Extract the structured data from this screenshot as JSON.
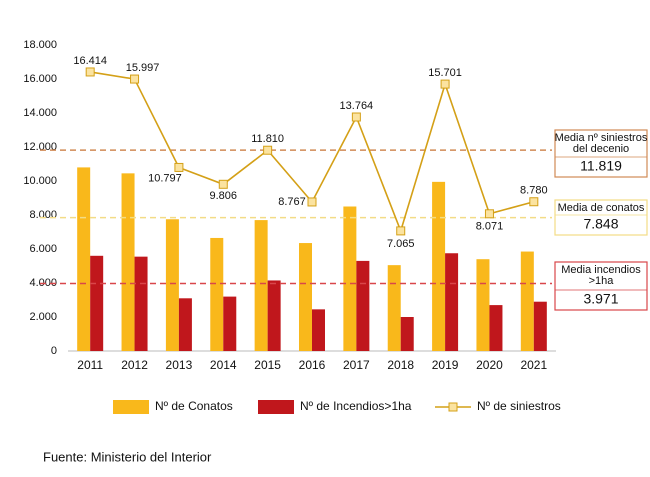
{
  "chart_data": {
    "type": "bar-line",
    "categories": [
      "2011",
      "2012",
      "2013",
      "2014",
      "2015",
      "2016",
      "2017",
      "2018",
      "2019",
      "2020",
      "2021"
    ],
    "series": [
      {
        "name": "Nº de Conatos",
        "type": "bar",
        "color": "#f9b81b",
        "values": [
          10800,
          10450,
          7750,
          6650,
          7700,
          6350,
          8500,
          5050,
          9950,
          5400,
          5850
        ]
      },
      {
        "name": "Nº de Incendios>1ha",
        "type": "bar",
        "color": "#c0171c",
        "values": [
          5600,
          5550,
          3100,
          3200,
          4150,
          2450,
          5300,
          2000,
          5750,
          2700,
          2900
        ]
      },
      {
        "name": "Nº de siniestros",
        "type": "line",
        "color": "#d4a017",
        "marker_fill": "#fbe3a0",
        "values": [
          16414,
          15997,
          10797,
          9806,
          11810,
          8767,
          13764,
          7065,
          15701,
          8071,
          8780
        ],
        "value_labels": [
          "16.414",
          "15.997",
          "10.797",
          "9.806",
          "11.810",
          "8.767",
          "13.764",
          "7.065",
          "15.701",
          "8.071",
          "8.780"
        ]
      }
    ],
    "ylim": [
      0,
      18000
    ],
    "yticks": [
      0,
      {
        "value": 2000,
        "label": "2.000"
      },
      {
        "value": 4000,
        "label": "4.000"
      },
      {
        "value": 6000,
        "label": "6.000"
      },
      {
        "value": 8000,
        "label": "8.000"
      },
      {
        "value": 10000,
        "label": "10.000"
      },
      {
        "value": 12000,
        "label": "12.000"
      },
      {
        "value": 14000,
        "label": "14.000"
      },
      {
        "value": 16000,
        "label": "16.000"
      },
      {
        "value": 18000,
        "label": "18.000"
      }
    ],
    "reference_lines": [
      {
        "label": [
          "Media nº siniestros",
          "del decenio"
        ],
        "value": 11819,
        "value_label": "11.819",
        "color": "#d08a55"
      },
      {
        "label": [
          "Media de conatos"
        ],
        "value": 7848,
        "value_label": "7.848",
        "color": "#f3dc86"
      },
      {
        "label": [
          "Media incendios",
          ">1ha"
        ],
        "value": 3971,
        "value_label": "3.971",
        "color": "#d9474a"
      }
    ],
    "source": "Fuente: Ministerio del Interior"
  }
}
